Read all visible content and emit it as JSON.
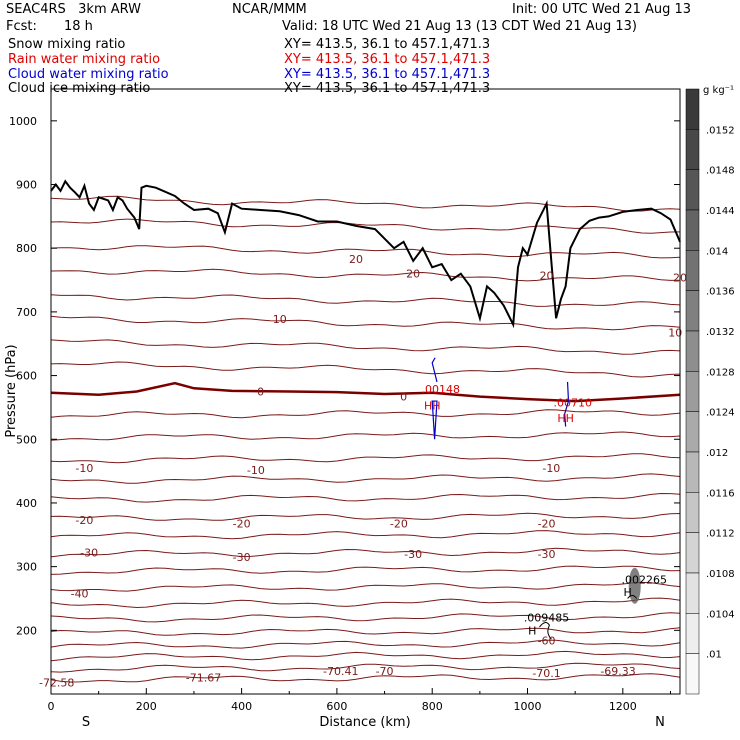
{
  "header": {
    "model": "SEAC4RS   3km ARW",
    "org": "NCAR/MMM",
    "init": "Init: 00 UTC Wed 21 Aug 13",
    "fcst_label": "Fcst:",
    "fcst_value": "18 h",
    "valid": "Valid: 18 UTC Wed 21 Aug 13 (13 CDT Wed 21 Aug 13)"
  },
  "fields": [
    {
      "name": "Snow mixing ratio",
      "xy": "XY= 413.5, 36.1 to 457.1,471.3",
      "color": "#000000"
    },
    {
      "name": "Rain water mixing ratio",
      "xy": "XY= 413.5, 36.1 to 457.1,471.3",
      "color": "#e00000"
    },
    {
      "name": "Cloud water mixing ratio",
      "xy": "XY= 413.5, 36.1 to 457.1,471.3",
      "color": "#0000cc"
    },
    {
      "name": "Cloud ice mixing ratio",
      "xy": "XY= 413.5, 36.1 to 457.1,471.3",
      "color": "#000000"
    }
  ],
  "chart_data": {
    "type": "cross-section contour",
    "xlabel": "Distance (km)",
    "ylabel": "Pressure (hPa)",
    "xlim": [
      0,
      1320
    ],
    "ylim": [
      1050,
      100
    ],
    "x_ticks": [
      "0",
      "200",
      "400",
      "600",
      "800",
      "1000",
      "1200"
    ],
    "y_ticks": [
      "200",
      "300",
      "400",
      "500",
      "600",
      "700",
      "800",
      "900",
      "1000"
    ],
    "x_end_labels": {
      "left": "S",
      "right": "N"
    },
    "colorbar": {
      "unit": "g kg⁻¹",
      "ticks": [
        ".0152",
        ".0148",
        ".0144",
        ".014",
        ".0136",
        ".0132",
        ".0128",
        ".0124",
        ".012",
        ".0116",
        ".0112",
        ".0108",
        ".0104",
        ".01"
      ],
      "fills": [
        "#3a3a3a",
        "#484848",
        "#565656",
        "#646464",
        "#727272",
        "#808080",
        "#8e8e8e",
        "#9c9c9c",
        "#aaaaaa",
        "#b8b8b8",
        "#c6c6c6",
        "#d4d4d4",
        "#e2e2e2",
        "#eeeeee",
        "#f8f8f8"
      ]
    },
    "temperature_labels": [
      {
        "text": "-72.58",
        "x": 12,
        "p": 118
      },
      {
        "text": "-71.67",
        "x": 320,
        "p": 126
      },
      {
        "text": "-70.41",
        "x": 608,
        "p": 136
      },
      {
        "text": "-70",
        "x": 700,
        "p": 136
      },
      {
        "text": "-70.1",
        "x": 1040,
        "p": 133
      },
      {
        "text": "-69.33",
        "x": 1190,
        "p": 136
      },
      {
        "text": "-60",
        "x": 1040,
        "p": 184
      },
      {
        "text": "-40",
        "x": 60,
        "p": 258
      },
      {
        "text": "-30",
        "x": 80,
        "p": 322
      },
      {
        "text": "-30",
        "x": 400,
        "p": 315
      },
      {
        "text": "-30",
        "x": 760,
        "p": 320
      },
      {
        "text": "-30",
        "x": 1040,
        "p": 320
      },
      {
        "text": "-20",
        "x": 70,
        "p": 373
      },
      {
        "text": "-20",
        "x": 400,
        "p": 368
      },
      {
        "text": "-20",
        "x": 730,
        "p": 368
      },
      {
        "text": "-20",
        "x": 1040,
        "p": 368
      },
      {
        "text": "-10",
        "x": 70,
        "p": 455
      },
      {
        "text": "-10",
        "x": 430,
        "p": 452
      },
      {
        "text": "-10",
        "x": 1050,
        "p": 455
      },
      {
        "text": "0",
        "x": 440,
        "p": 575
      },
      {
        "text": "0",
        "x": 740,
        "p": 567
      },
      {
        "text": "10",
        "x": 480,
        "p": 689
      },
      {
        "text": "10",
        "x": 1310,
        "p": 668
      },
      {
        "text": "20",
        "x": 640,
        "p": 783
      },
      {
        "text": "20",
        "x": 760,
        "p": 760
      },
      {
        "text": "20",
        "x": 1040,
        "p": 757
      },
      {
        "text": "20",
        "x": 1320,
        "p": 754
      }
    ],
    "isotherm_levels": [
      125,
      142,
      160,
      178,
      198,
      220,
      243,
      268,
      295,
      322,
      350,
      378,
      408,
      438,
      470,
      505,
      540,
      610,
      645,
      682,
      718,
      758,
      795,
      835,
      870
    ],
    "freezing_level": {
      "x": [
        0,
        100,
        180,
        260,
        300,
        380,
        500,
        600,
        700,
        800,
        900,
        1000,
        1100,
        1200,
        1320
      ],
      "p": [
        573,
        570,
        575,
        588,
        580,
        576,
        575,
        574,
        571,
        573,
        567,
        563,
        560,
        564,
        570
      ]
    },
    "terrain": {
      "x": [
        0,
        10,
        20,
        30,
        40,
        50,
        60,
        70,
        80,
        90,
        100,
        120,
        130,
        140,
        150,
        160,
        175,
        185,
        190,
        200,
        220,
        260,
        280,
        300,
        330,
        350,
        365,
        380,
        400,
        440,
        480,
        520,
        560,
        600,
        640,
        680,
        700,
        720,
        740,
        760,
        780,
        800,
        820,
        840,
        860,
        880,
        900,
        915,
        930,
        950,
        970,
        980,
        990,
        1000,
        1020,
        1040,
        1050,
        1060,
        1070,
        1080,
        1090,
        1110,
        1130,
        1150,
        1170,
        1200,
        1230,
        1260,
        1280,
        1300,
        1320
      ],
      "p": [
        890,
        900,
        890,
        905,
        895,
        888,
        880,
        898,
        870,
        860,
        880,
        875,
        860,
        880,
        875,
        862,
        848,
        830,
        895,
        898,
        895,
        882,
        870,
        860,
        862,
        855,
        825,
        870,
        862,
        860,
        858,
        852,
        842,
        842,
        835,
        830,
        815,
        800,
        810,
        780,
        800,
        770,
        775,
        750,
        760,
        740,
        690,
        740,
        730,
        710,
        680,
        770,
        800,
        790,
        840,
        870,
        780,
        690,
        720,
        740,
        800,
        830,
        843,
        848,
        850,
        857,
        860,
        862,
        855,
        845,
        810
      ]
    },
    "max_labels": [
      {
        "text": "H",
        "x": 1010,
        "p": 200,
        "color": "#000000"
      },
      {
        "text": ".009485",
        "x": 1040,
        "p": 220,
        "color": "#000000"
      },
      {
        "text": "H",
        "x": 1210,
        "p": 260,
        "color": "#000000"
      },
      {
        "text": ".002265",
        "x": 1245,
        "p": 280,
        "color": "#000000"
      },
      {
        "text": "HH",
        "x": 800,
        "p": 553,
        "color": "#e00000"
      },
      {
        "text": ".00148",
        "x": 818,
        "p": 579,
        "color": "#e00000"
      },
      {
        "text": "HH",
        "x": 1080,
        "p": 533,
        "color": "#e00000"
      },
      {
        "text": ".00710",
        "x": 1095,
        "p": 558,
        "color": "#e00000"
      }
    ]
  }
}
